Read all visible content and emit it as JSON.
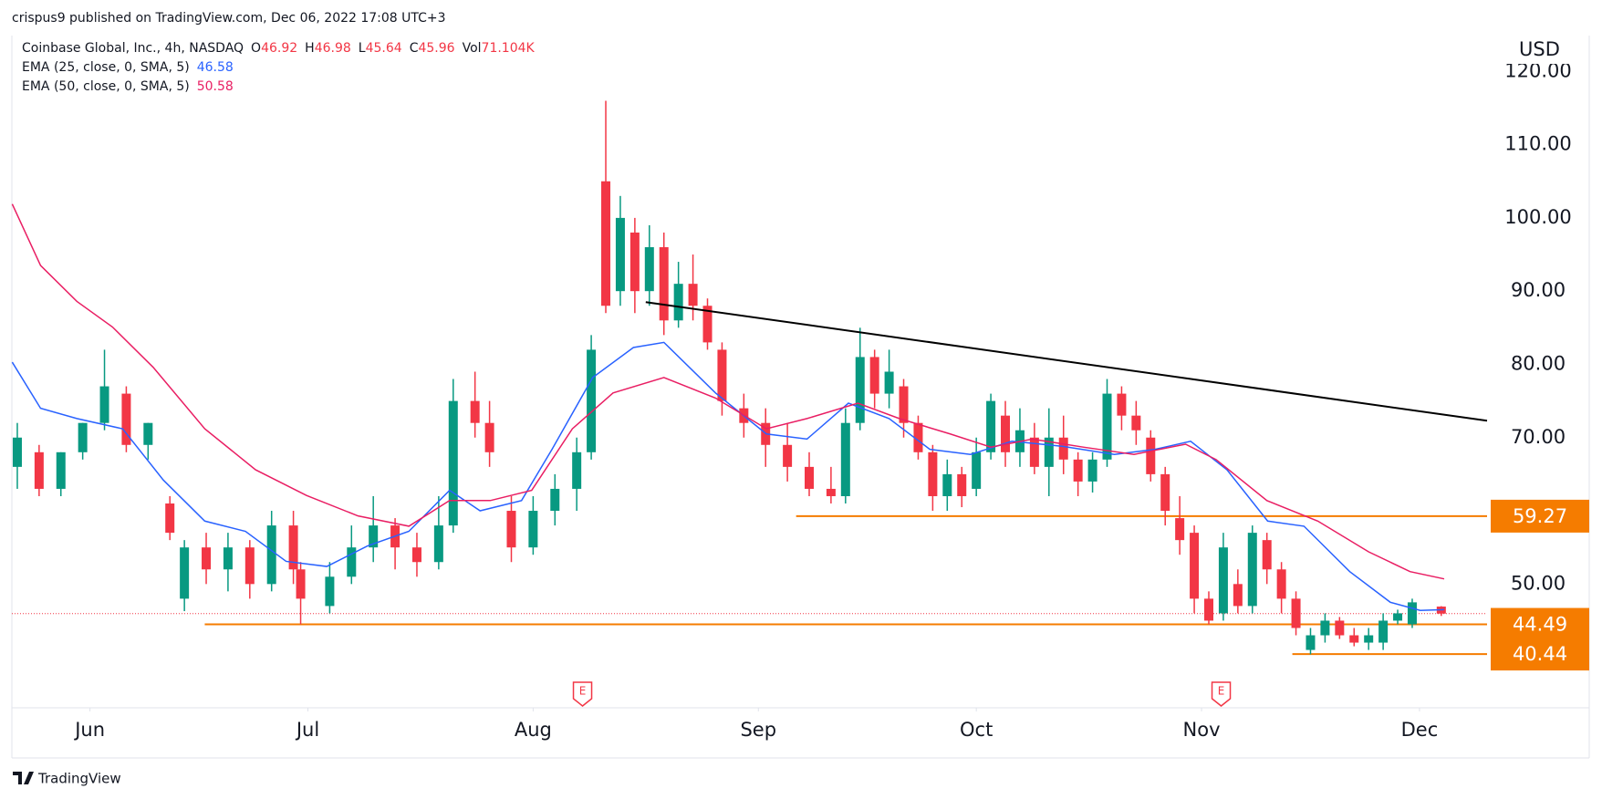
{
  "header": {
    "published": "crispus9 published on TradingView.com, Dec 06, 2022 17:08 UTC+3",
    "footer": "TradingView"
  },
  "chart_data": {
    "type": "candlestick",
    "symbol": "Coinbase Global, Inc., 4h, NASDAQ",
    "ohlc_legend": [
      {
        "key": "O",
        "value": "46.92"
      },
      {
        "key": "H",
        "value": "46.98"
      },
      {
        "key": "L",
        "value": "45.64"
      },
      {
        "key": "C",
        "value": "45.96"
      },
      {
        "key": "Vol",
        "value": "71.104K"
      }
    ],
    "y_axis_label": "USD",
    "up_color": "#089981",
    "down_color": "#f23645",
    "xlim": [
      -10.75,
      192.3
    ],
    "xticks": [
      {
        "value": 0,
        "label": "Jun"
      },
      {
        "value": 30,
        "label": "Jul"
      },
      {
        "value": 61,
        "label": "Aug"
      },
      {
        "value": 92,
        "label": "Sep"
      },
      {
        "value": 122,
        "label": "Oct"
      },
      {
        "value": 153,
        "label": "Nov"
      },
      {
        "value": 183,
        "label": "Dec"
      }
    ],
    "ylim": [
      33.1,
      124.9
    ],
    "yticks": [
      {
        "value": 50,
        "label": "50.00"
      },
      {
        "value": 70,
        "label": "70.00"
      },
      {
        "value": 80,
        "label": "80.00"
      },
      {
        "value": 90,
        "label": "90.00"
      },
      {
        "value": 100,
        "label": "100.00"
      },
      {
        "value": 110,
        "label": "110.00"
      },
      {
        "value": 120,
        "label": "120.00"
      }
    ],
    "candles": {
      "x": [
        -10,
        -7,
        -4,
        -1,
        2,
        5,
        8,
        11,
        13,
        16,
        19,
        22,
        25,
        28,
        29,
        33,
        36,
        39,
        42,
        45,
        48,
        50,
        53,
        55,
        58,
        61,
        64,
        67,
        69,
        71,
        73,
        75,
        77,
        79,
        81,
        83,
        85,
        87,
        90,
        93,
        96,
        99,
        102,
        104,
        106,
        108,
        110,
        112,
        114,
        116,
        118,
        120,
        122,
        124,
        126,
        128,
        130,
        132,
        134,
        136,
        138,
        140,
        142,
        144,
        146,
        148,
        150,
        152,
        154,
        156,
        158,
        160,
        162,
        164,
        166,
        168,
        170,
        172,
        174,
        176,
        178,
        180,
        182,
        186
      ],
      "open": [
        66,
        68,
        63,
        68,
        72,
        76,
        69,
        61,
        48,
        55,
        52,
        55,
        50,
        58,
        52,
        47,
        51,
        55,
        58,
        55,
        53,
        58,
        75,
        72,
        60,
        55,
        60,
        63,
        68,
        105,
        90,
        98,
        90,
        96,
        86,
        91,
        88,
        82,
        74,
        72,
        69,
        66,
        63,
        62,
        72,
        81,
        76,
        77,
        72,
        68,
        62,
        65,
        63,
        68,
        73,
        68,
        70,
        66,
        70,
        67,
        64,
        67,
        76,
        73,
        70,
        65,
        59,
        57,
        48,
        46,
        50,
        47,
        56,
        52,
        48,
        41,
        43,
        45,
        43,
        42,
        42,
        45,
        44.5,
        46.92
      ],
      "high": [
        72,
        69,
        68,
        72,
        82,
        77,
        72,
        62,
        56,
        57,
        57,
        56,
        60,
        60,
        53,
        53,
        58,
        62,
        59,
        57,
        62,
        78,
        79,
        75,
        62,
        62,
        65,
        70,
        84,
        116,
        103,
        100,
        99,
        98,
        94,
        95,
        89,
        83,
        76,
        74,
        72,
        68,
        66,
        74,
        85,
        82,
        82,
        78,
        73,
        69,
        67,
        66,
        70,
        76,
        75,
        74,
        72,
        74,
        73,
        68,
        68,
        78,
        77,
        75,
        71,
        66,
        62,
        58,
        49,
        57,
        52,
        58,
        57,
        53,
        49,
        44,
        46,
        45.5,
        44,
        44,
        46,
        46.5,
        48,
        46.98
      ],
      "low": [
        63,
        62,
        62,
        67,
        71,
        68,
        67,
        56,
        46.3,
        50,
        49,
        48,
        49,
        50,
        44.5,
        46,
        50,
        53,
        52,
        51,
        52,
        57,
        70,
        66,
        53,
        54,
        58,
        60,
        67,
        87,
        88,
        87,
        88,
        84,
        85,
        86,
        82,
        73,
        70,
        66,
        64,
        62,
        61,
        61,
        71,
        74,
        74,
        70,
        67,
        60,
        60,
        60.5,
        62,
        67,
        66,
        66,
        65,
        62,
        65,
        62,
        62.5,
        66,
        71,
        69,
        64,
        58,
        54,
        46,
        44.5,
        45,
        46,
        46,
        50,
        46,
        43,
        40.4,
        42,
        42.5,
        41.5,
        41,
        41,
        44.5,
        44,
        45.64
      ],
      "close": [
        70,
        63,
        68,
        72,
        77,
        69,
        72,
        57,
        55,
        52,
        55,
        50,
        58,
        52,
        48,
        51,
        55,
        58,
        55,
        53,
        58,
        75,
        72,
        68,
        55,
        60,
        63,
        68,
        82,
        88,
        100,
        90,
        96,
        86,
        91,
        88,
        83,
        75,
        72,
        69,
        66,
        63,
        62,
        72,
        81,
        76,
        79,
        72,
        68,
        62,
        65,
        62,
        68,
        75,
        68,
        71,
        66,
        70,
        67,
        64,
        67,
        76,
        73,
        71,
        65,
        60,
        56,
        48,
        45,
        55,
        47,
        57,
        52,
        48,
        44,
        43,
        45,
        43,
        42,
        43,
        45,
        46,
        47.5,
        45.96
      ]
    },
    "lines": [
      {
        "name": "EMA (25, close, 0, SMA, 5)",
        "last_value": 46.58,
        "color": "#2962ff",
        "x": [
          -10.7,
          -6.8,
          -1.8,
          4.5,
          10.1,
          15.8,
          21.4,
          27,
          32.6,
          38.2,
          43.9,
          49.5,
          53.7,
          59.4,
          63.6,
          69.2,
          74.8,
          79,
          86.1,
          93.1,
          98.7,
          104.4,
          110,
          115.6,
          121.2,
          126.9,
          133.9,
          141,
          146.6,
          151.5,
          156.5,
          162.1,
          167.1,
          173.4,
          179,
          183.1,
          186.4
        ],
        "values": [
          80.3,
          74,
          72.6,
          71.2,
          64.2,
          58.6,
          57.2,
          53.1,
          52.4,
          55.2,
          57.2,
          62.8,
          60,
          61.4,
          68.4,
          78.2,
          82.3,
          83,
          76.1,
          70.5,
          69.8,
          74.7,
          72.6,
          68.4,
          67.7,
          69.5,
          68.8,
          67.7,
          68.4,
          69.5,
          65.6,
          58.6,
          57.9,
          51.7,
          47.5,
          46.4,
          46.5
        ]
      },
      {
        "name": "EMA (50, close, 0, SMA, 5)",
        "last_value": 50.58,
        "color": "#e91e63",
        "x": [
          -10.7,
          -6.8,
          -1.8,
          3.1,
          8.7,
          15.8,
          22.8,
          29.8,
          36.9,
          43.9,
          49.5,
          55.1,
          60.8,
          66.4,
          72,
          79,
          86.1,
          93.1,
          98.7,
          105.7,
          111.4,
          118.4,
          124,
          129.7,
          136.7,
          143.7,
          150.8,
          155,
          162,
          169,
          176,
          181.7,
          186.4
        ],
        "values": [
          101.9,
          93.5,
          88.6,
          85.1,
          79.6,
          71.2,
          65.6,
          62.1,
          59.3,
          57.9,
          61.4,
          61.4,
          62.8,
          71.2,
          76.1,
          78.2,
          75.4,
          71.2,
          72.6,
          74.7,
          72.6,
          70.5,
          68.7,
          69.8,
          68.7,
          67.7,
          69.1,
          67,
          61.4,
          58.6,
          54.4,
          51.7,
          50.7
        ]
      }
    ],
    "trendline": {
      "color": "#000000",
      "x": [
        76.5,
        192.3
      ],
      "values": [
        88.5,
        72.3
      ]
    },
    "levels": [
      {
        "value": 59.27,
        "x_start": 97.2,
        "color": "#f57c00"
      },
      {
        "value": 44.49,
        "x_start": 15.8,
        "color": "#f57c00"
      },
      {
        "value": 40.44,
        "x_start": 165.5,
        "color": "#f57c00"
      }
    ],
    "events": [
      {
        "x": 67.8,
        "label": "E"
      },
      {
        "x": 155.7,
        "label": "E"
      }
    ]
  }
}
